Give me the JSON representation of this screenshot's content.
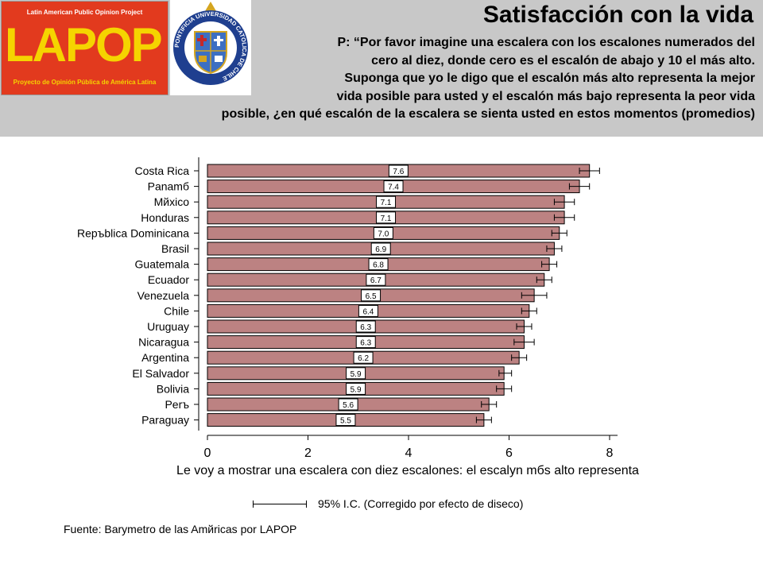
{
  "header": {
    "title": "Satisfacción con la vida",
    "question_lines": [
      "P: “Por favor imagine una escalera con los escalones numerados del",
      "cero al diez, donde cero es el escalón de abajo y 10 el más alto.",
      "Suponga que yo le digo que el escalón más alto representa la mejor",
      "vida posible para usted y el escalón más bajo representa la peor vida",
      "posible, ¿en qué escalón de la escalera se sienta usted en estos momentos (promedios)"
    ]
  },
  "logos": {
    "lapop": {
      "top_text": "Latin American Public Opinion Project",
      "word": "LAPOP",
      "bottom_text": "Proyecto de Opinión Pública de América Latina",
      "bg_color": "#e23a1e",
      "text_color": "#f5d400"
    },
    "uc": {
      "ring_text": "PONTIFICIA UNIVERSIDAD CATOLICA DE CHILE",
      "ring_color": "#1f3f8f"
    }
  },
  "chart_data": {
    "type": "bar",
    "orientation": "horizontal",
    "categories": [
      "Costa Rica",
      "Panamб",
      "Mйxico",
      "Honduras",
      "Repъblica Dominicana",
      "Brasil",
      "Guatemala",
      "Ecuador",
      "Venezuela",
      "Chile",
      "Uruguay",
      "Nicaragua",
      "Argentina",
      "El Salvador",
      "Bolivia",
      "Perъ",
      "Paraguay"
    ],
    "values": [
      7.6,
      7.4,
      7.1,
      7.1,
      7.0,
      6.9,
      6.8,
      6.7,
      6.5,
      6.4,
      6.3,
      6.3,
      6.2,
      5.9,
      5.9,
      5.6,
      5.5
    ],
    "value_labels": [
      "7.6",
      "7.4",
      "7.1",
      "7.1",
      "7.0",
      "6.9",
      "6.8",
      "6.7",
      "6.5",
      "6.4",
      "6.3",
      "6.3",
      "6.2",
      "5.9",
      "5.9",
      "5.6",
      "5.5"
    ],
    "ci_low": [
      7.4,
      7.2,
      6.9,
      6.9,
      6.85,
      6.75,
      6.65,
      6.55,
      6.25,
      6.25,
      6.15,
      6.1,
      6.05,
      5.8,
      5.75,
      5.45,
      5.35
    ],
    "ci_high": [
      7.8,
      7.6,
      7.3,
      7.3,
      7.15,
      7.05,
      6.95,
      6.85,
      6.75,
      6.55,
      6.45,
      6.5,
      6.35,
      6.05,
      6.05,
      5.75,
      5.65
    ],
    "xlabel": "Le voy a mostrar una escalera con diez escalones: el escalуn mбs alto representa",
    "xlim": [
      0,
      8
    ],
    "xticks": [
      0,
      2,
      4,
      6,
      8
    ],
    "xtick_labels": [
      "0",
      "2",
      "4",
      "6",
      "8"
    ],
    "bar_color": "#bc8282",
    "grid": false
  },
  "legend": {
    "text": "95% I.C. (Corregido por efecto de diseco)"
  },
  "source": "Fuente: Barуmetro de las Amйricas por LAPOP"
}
